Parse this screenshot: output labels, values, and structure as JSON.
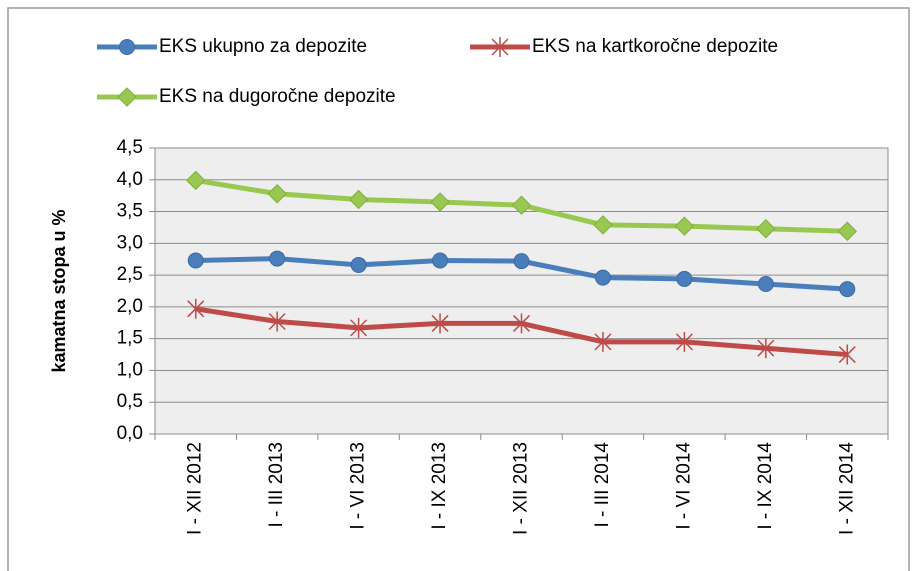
{
  "chart_data": {
    "type": "line",
    "y_label": "kamatna stopa u %",
    "categories": [
      "I - XII 2012",
      "I - III 2013",
      "I - VI 2013",
      "I - IX 2013",
      "I - XII 2013",
      "I - III 2014",
      "I - VI 2014",
      "I - IX 2014",
      "I - XII 2014"
    ],
    "series": [
      {
        "name": "EKS ukupno za depozite",
        "color": "#4a7ebb",
        "marker": "circle",
        "values": [
          2.73,
          2.76,
          2.66,
          2.73,
          2.72,
          2.46,
          2.44,
          2.36,
          2.28
        ]
      },
      {
        "name": "EKS na kartkoročne depozite",
        "color": "#be4b48",
        "marker": "star",
        "values": [
          1.97,
          1.77,
          1.67,
          1.74,
          1.74,
          1.45,
          1.45,
          1.35,
          1.25
        ]
      },
      {
        "name": "EKS na dugoročne depozite",
        "color": "#98c850",
        "marker": "diamond",
        "values": [
          3.99,
          3.78,
          3.69,
          3.65,
          3.6,
          3.29,
          3.27,
          3.23,
          3.19
        ]
      }
    ],
    "ylim": [
      0,
      4.5
    ],
    "yticks": [
      {
        "value": 0,
        "label": "0,0"
      },
      {
        "value": 0.5,
        "label": "0,5"
      },
      {
        "value": 1,
        "label": "1,0"
      },
      {
        "value": 1.5,
        "label": "1,5"
      },
      {
        "value": 2,
        "label": "2,0"
      },
      {
        "value": 2.5,
        "label": "2,5"
      },
      {
        "value": 3,
        "label": "3,0"
      },
      {
        "value": 3.5,
        "label": "3,5"
      },
      {
        "value": 4,
        "label": "4,0"
      },
      {
        "value": 4.5,
        "label": "4,5"
      }
    ],
    "grid": true,
    "legend": "top"
  }
}
